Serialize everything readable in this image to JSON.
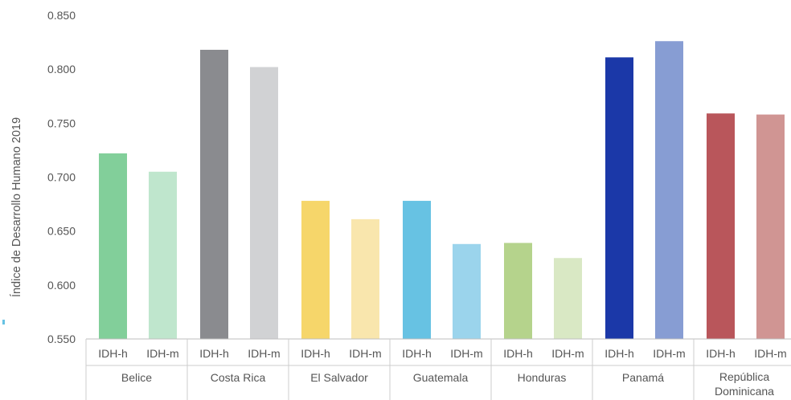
{
  "chart_data": {
    "type": "bar",
    "ylabel": "Índice de Desarrollo Humano 2019",
    "ylim": [
      0.55,
      0.85
    ],
    "yticks": [
      "0.850",
      "0.800",
      "0.750",
      "0.700",
      "0.650",
      "0.600",
      "0.550"
    ],
    "subcategories": [
      "IDH-h",
      "IDH-m"
    ],
    "groups": [
      {
        "name": "Belice",
        "values": [
          0.722,
          0.705
        ],
        "colors": [
          "#82cf9a",
          "#bfe6cd"
        ]
      },
      {
        "name": "Costa Rica",
        "values": [
          0.818,
          0.802
        ],
        "colors": [
          "#8a8b8f",
          "#d1d2d4"
        ]
      },
      {
        "name": "El Salvador",
        "values": [
          0.678,
          0.661
        ],
        "colors": [
          "#f6d66a",
          "#f9e6ad"
        ]
      },
      {
        "name": "Guatemala",
        "values": [
          0.678,
          0.638
        ],
        "colors": [
          "#67c2e3",
          "#9bd4ec"
        ]
      },
      {
        "name": "Honduras",
        "values": [
          0.639,
          0.625
        ],
        "colors": [
          "#b5d38c",
          "#d9e8c4"
        ]
      },
      {
        "name": "Panamá",
        "values": [
          0.811,
          0.826
        ],
        "colors": [
          "#1b38a8",
          "#879dd3"
        ]
      },
      {
        "name": "República Dominicana",
        "lines": [
          "República",
          "Dominicana"
        ],
        "values": [
          0.759,
          0.758
        ],
        "colors": [
          "#b9565b",
          "#d09593"
        ]
      }
    ]
  }
}
